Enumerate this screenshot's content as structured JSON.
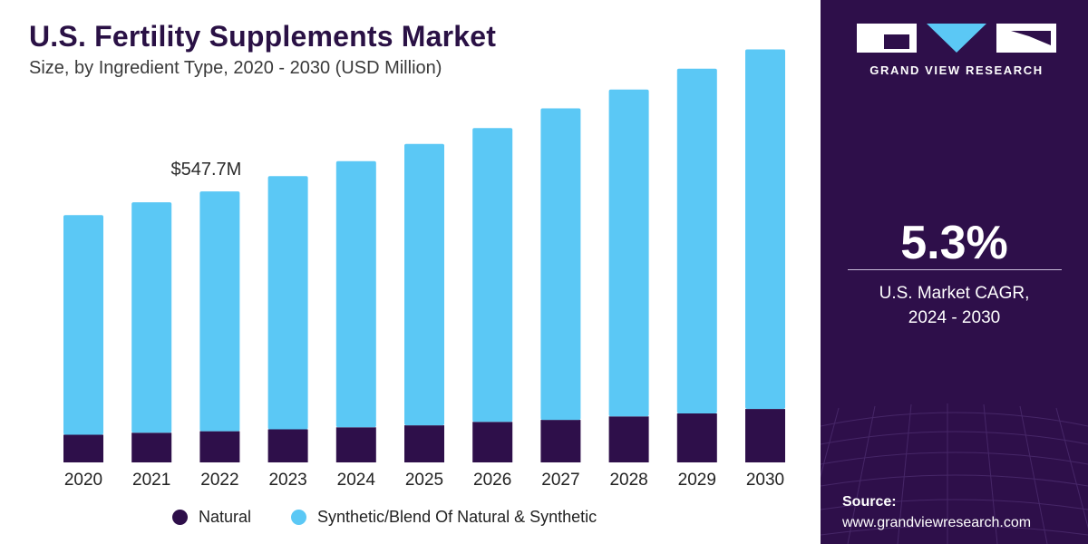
{
  "header": {
    "title": "U.S. Fertility Supplements Market",
    "subtitle": "Size, by Ingredient Type, 2020 - 2030 (USD Million)"
  },
  "chart_data": {
    "type": "bar",
    "stacked": true,
    "categories": [
      "2020",
      "2021",
      "2022",
      "2023",
      "2024",
      "2025",
      "2026",
      "2027",
      "2028",
      "2029",
      "2030"
    ],
    "series": [
      {
        "name": "Natural",
        "color": "#2e0f4a",
        "values": [
          56,
          60,
          63,
          67,
          71,
          75,
          82,
          86,
          93,
          99,
          108
        ]
      },
      {
        "name": "Synthetic/Blend Of Natural & Synthetic",
        "color": "#5bc8f5",
        "values": [
          444,
          466,
          485,
          512,
          538,
          569,
          594,
          630,
          661,
          697,
          727
        ]
      }
    ],
    "annotations": [
      {
        "category": "2022",
        "label": "$547.7M"
      }
    ],
    "legend_position": "bottom",
    "grid": false,
    "ylim": [
      0,
      880
    ]
  },
  "side_panel": {
    "brand": "GRAND VIEW RESEARCH",
    "cagr_value": "5.3%",
    "cagr_label_line1": "U.S. Market CAGR,",
    "cagr_label_line2": "2024 - 2030",
    "source_label": "Source:",
    "source_url": "www.grandviewresearch.com"
  }
}
